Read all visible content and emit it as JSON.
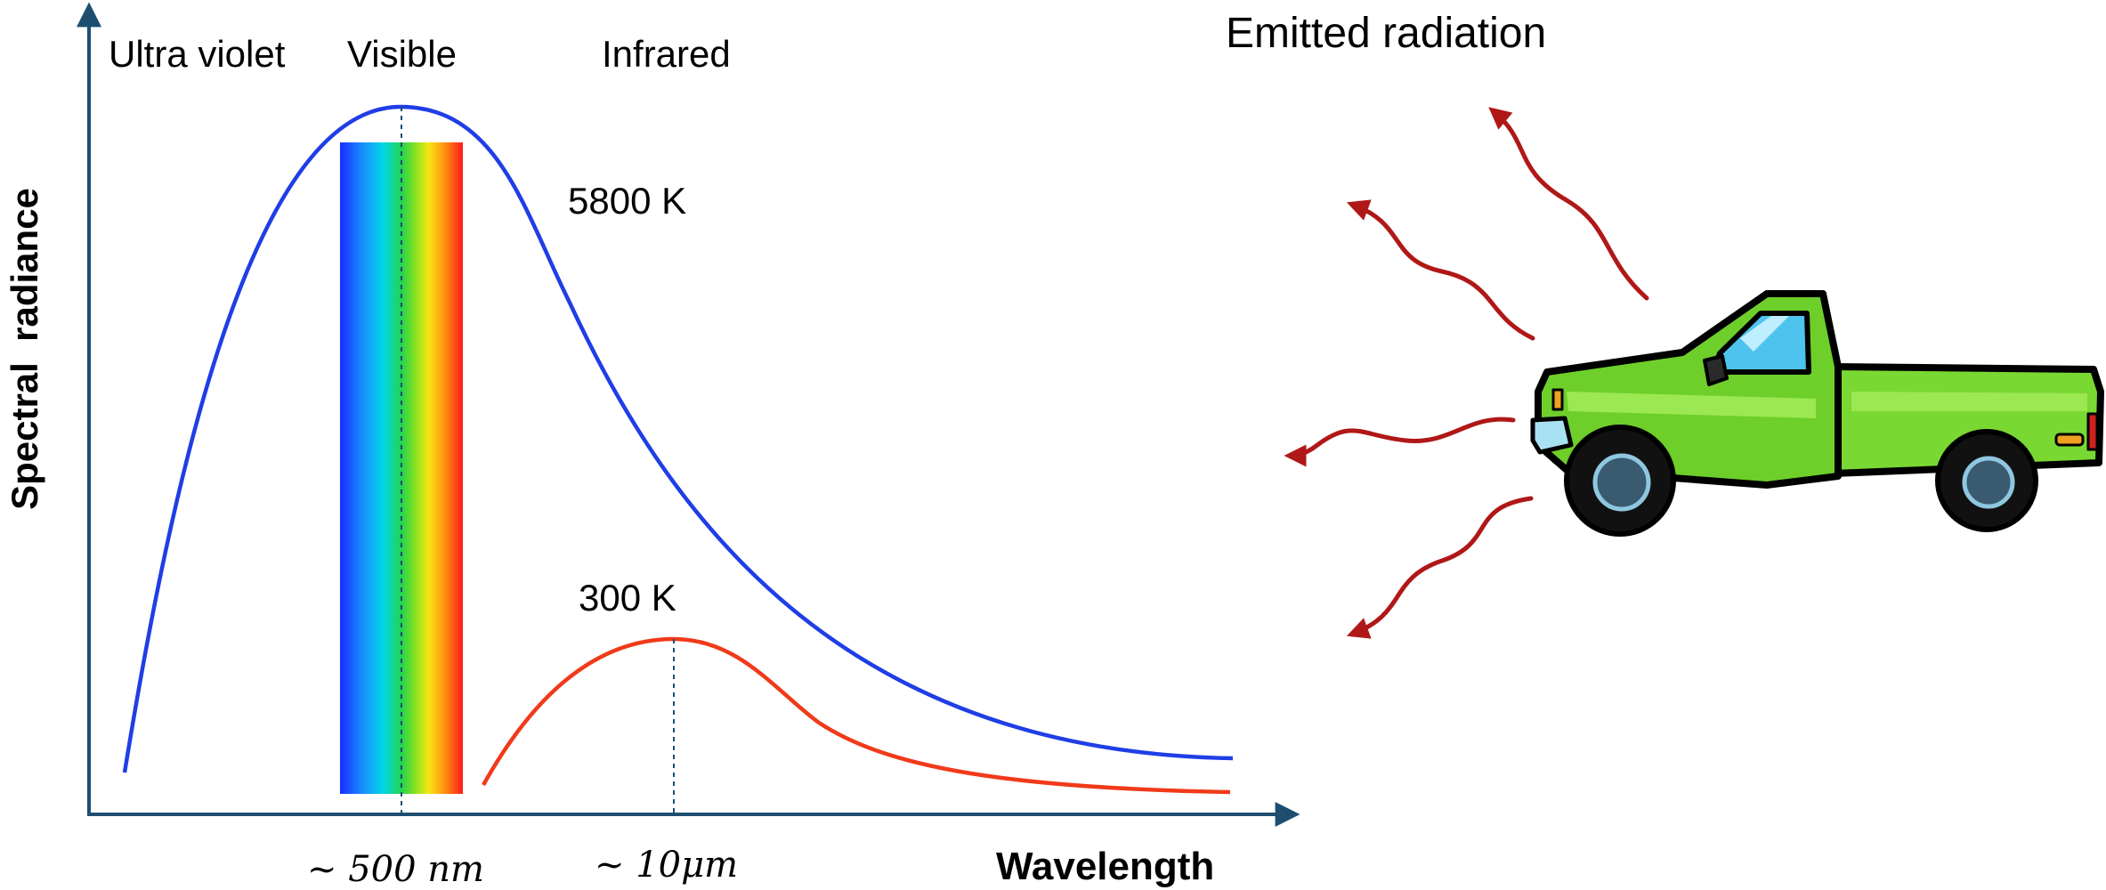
{
  "regions": {
    "ultraviolet": "Ultra violet",
    "visible": "Visible",
    "infrared": "Infrared"
  },
  "axes": {
    "y_label": "Spectral  radiance",
    "x_label": "Wavelength"
  },
  "curves": {
    "hot": {
      "label": "5800 K",
      "color": "#1f3ee6",
      "peak_label": "~ 500 nm"
    },
    "cool": {
      "label": "300 K",
      "color": "#f03a1a",
      "peak_label": "~ 10μm"
    }
  },
  "truck_panel": {
    "title": "Emitted radiation",
    "truck_color": "#6fcf2a",
    "wave_color": "#b01818"
  },
  "colors": {
    "axis": "#1d4e70"
  }
}
